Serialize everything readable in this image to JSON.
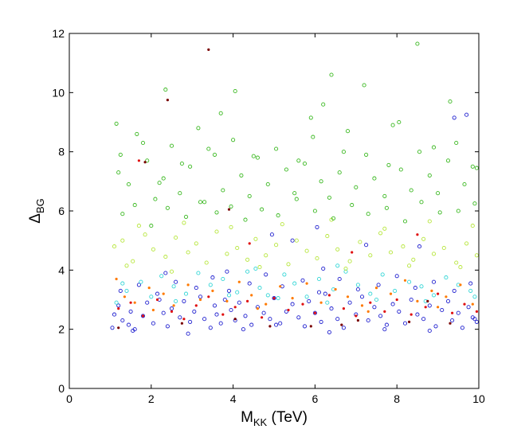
{
  "chart_data": {
    "type": "scatter",
    "title": "",
    "xlabel": {
      "main": "M",
      "sub": "KK",
      "rest": " (TeV)"
    },
    "ylabel": {
      "main": "Δ",
      "sub": "BG"
    },
    "xlim": [
      0,
      10
    ],
    "ylim": [
      0,
      12
    ],
    "xticks": [
      "0",
      "2",
      "4",
      "6",
      "8",
      "10"
    ],
    "yticks": [
      "0",
      "2",
      "4",
      "6",
      "8",
      "10",
      "12"
    ],
    "grid": false,
    "colors": {
      "blue": "#1f1fcf",
      "cyan": "#33d6d6",
      "yellow_green": "#b6e63a",
      "green": "#39b81f",
      "orange": "#ff7a00",
      "red": "#e01010",
      "dark_red": "#7a0000"
    },
    "series": [
      {
        "color_key": "blue",
        "marker": "open",
        "x": [
          1.05,
          1.1,
          1.2,
          1.3,
          1.45,
          1.5,
          1.6,
          1.8,
          1.9,
          2.05,
          2.2,
          2.3,
          2.4,
          2.5,
          2.7,
          2.8,
          2.95,
          3.05,
          3.2,
          3.3,
          3.45,
          3.55,
          3.6,
          3.7,
          3.8,
          3.95,
          4.05,
          4.15,
          4.3,
          4.45,
          4.6,
          4.75,
          4.9,
          5.0,
          5.15,
          5.3,
          5.45,
          5.6,
          5.75,
          5.85,
          6.0,
          6.15,
          6.25,
          6.4,
          6.55,
          6.7,
          6.85,
          7.0,
          7.15,
          7.3,
          7.45,
          7.6,
          7.75,
          7.9,
          8.05,
          8.2,
          8.35,
          8.5,
          8.65,
          8.8,
          8.95,
          9.1,
          9.25,
          9.35,
          9.5,
          9.6,
          9.75,
          9.85,
          9.95,
          1.25,
          1.7,
          2.15,
          2.6,
          3.1,
          3.5,
          3.9,
          4.4,
          4.8,
          5.2,
          5.7,
          6.1,
          6.6,
          7.05,
          7.55,
          8.0,
          8.45,
          8.9,
          9.4,
          9.8,
          4.95,
          5.45,
          6.05,
          6.2,
          7.25,
          2.35,
          3.85,
          9.7,
          9.4,
          8.55,
          1.55,
          2.9,
          4.25,
          5.05,
          6.35,
          7.7,
          8.8,
          9.9
        ],
        "y": [
          2.05,
          2.5,
          2.8,
          2.3,
          2.15,
          2.6,
          2.0,
          2.45,
          2.9,
          2.2,
          3.0,
          2.55,
          2.1,
          2.7,
          2.4,
          2.95,
          2.25,
          2.6,
          3.1,
          2.35,
          2.05,
          2.8,
          2.5,
          2.2,
          3.0,
          2.65,
          2.3,
          2.9,
          2.45,
          2.15,
          2.75,
          2.55,
          2.35,
          3.05,
          2.2,
          2.6,
          2.85,
          2.4,
          2.1,
          2.95,
          2.55,
          2.25,
          3.2,
          2.7,
          2.35,
          2.05,
          2.9,
          2.5,
          3.1,
          2.3,
          2.75,
          2.45,
          2.15,
          2.85,
          2.6,
          2.2,
          3.0,
          2.5,
          2.35,
          2.8,
          2.1,
          2.65,
          2.95,
          2.3,
          2.55,
          2.05,
          2.75,
          2.4,
          2.25,
          3.3,
          3.5,
          3.2,
          3.6,
          3.4,
          3.75,
          3.3,
          3.55,
          3.85,
          3.45,
          3.65,
          3.25,
          3.7,
          3.35,
          3.5,
          3.8,
          3.4,
          3.6,
          3.3,
          3.55,
          5.2,
          5.0,
          5.45,
          4.05,
          4.85,
          3.9,
          3.95,
          9.25,
          9.15,
          4.8,
          1.95,
          1.85,
          2.0,
          2.15,
          1.9,
          2.0,
          1.95,
          2.35
        ],
        "size": 2.1
      },
      {
        "color_key": "cyan",
        "marker": "open",
        "x": [
          1.15,
          1.4,
          1.75,
          2.0,
          2.25,
          2.55,
          2.85,
          3.15,
          3.45,
          3.75,
          4.1,
          4.35,
          4.65,
          4.85,
          5.25,
          5.5,
          5.8,
          6.1,
          6.45,
          6.75,
          7.05,
          7.35,
          7.65,
          7.95,
          8.3,
          8.6,
          8.9,
          9.2,
          9.5,
          9.8,
          1.3,
          2.6,
          3.9,
          5.1,
          6.3,
          7.5,
          8.7,
          9.9,
          4.55,
          6.55
        ],
        "y": [
          2.9,
          3.3,
          3.6,
          3.1,
          3.8,
          3.45,
          3.2,
          3.9,
          3.5,
          3.7,
          3.25,
          3.95,
          3.4,
          3.15,
          3.85,
          3.55,
          3.1,
          3.7,
          3.35,
          3.95,
          3.5,
          3.2,
          3.85,
          3.3,
          3.6,
          3.45,
          3.15,
          3.75,
          3.5,
          3.3,
          3.55,
          2.95,
          3.15,
          3.05,
          2.9,
          3.0,
          2.95,
          3.1,
          4.05,
          4.15
        ],
        "size": 2.1
      },
      {
        "color_key": "yellow_green",
        "marker": "open",
        "x": [
          1.1,
          1.3,
          1.55,
          1.85,
          2.05,
          2.35,
          2.6,
          2.9,
          3.1,
          3.35,
          3.6,
          3.85,
          4.1,
          4.35,
          4.55,
          4.8,
          5.05,
          5.35,
          5.55,
          5.8,
          6.05,
          6.3,
          6.55,
          6.85,
          7.1,
          7.35,
          7.6,
          7.85,
          8.15,
          8.4,
          8.65,
          8.9,
          9.15,
          9.45,
          9.7,
          9.95,
          1.7,
          2.8,
          3.95,
          5.2,
          6.4,
          7.7,
          8.8,
          9.85,
          1.4,
          4.65,
          6.75,
          8.3,
          9.55,
          2.5
        ],
        "y": [
          4.8,
          5.0,
          4.3,
          5.2,
          4.7,
          4.45,
          5.1,
          4.6,
          4.9,
          4.25,
          5.3,
          4.55,
          4.75,
          4.35,
          5.05,
          4.5,
          4.85,
          4.2,
          5.0,
          4.65,
          4.4,
          5.15,
          4.7,
          4.3,
          4.95,
          4.5,
          5.25,
          4.6,
          4.8,
          4.35,
          5.05,
          4.55,
          4.75,
          4.25,
          4.9,
          4.5,
          5.5,
          5.6,
          5.45,
          5.55,
          5.7,
          5.4,
          5.65,
          5.5,
          4.15,
          4.1,
          4.05,
          4.15,
          4.1,
          3.95
        ],
        "size": 2.1
      },
      {
        "color_key": "green",
        "marker": "open",
        "x": [
          1.15,
          1.2,
          1.45,
          1.65,
          1.9,
          2.1,
          2.3,
          2.5,
          2.7,
          2.95,
          3.15,
          3.3,
          3.55,
          3.75,
          4.0,
          4.2,
          4.4,
          4.6,
          4.85,
          5.05,
          5.3,
          5.5,
          5.75,
          5.95,
          6.15,
          6.35,
          6.6,
          6.8,
          7.0,
          7.25,
          7.45,
          7.7,
          7.9,
          8.1,
          8.35,
          8.55,
          8.8,
          9.0,
          9.25,
          9.45,
          9.65,
          9.85,
          1.3,
          1.6,
          2.0,
          2.4,
          2.85,
          3.2,
          3.6,
          3.95,
          4.3,
          4.7,
          5.1,
          5.55,
          6.0,
          6.45,
          6.9,
          7.3,
          7.75,
          8.2,
          8.6,
          9.05,
          9.5,
          9.9,
          2.35,
          4.05,
          6.2,
          7.2,
          8.5,
          3.7,
          5.9,
          9.3,
          1.25,
          1.8,
          2.75,
          3.4,
          4.5,
          5.6,
          6.7,
          7.8,
          8.9,
          9.95,
          2.2,
          6.4,
          8.05
        ],
        "y": [
          8.95,
          7.3,
          6.9,
          8.6,
          7.7,
          6.4,
          7.1,
          8.2,
          6.6,
          7.5,
          8.8,
          6.3,
          7.9,
          6.7,
          8.4,
          7.2,
          6.5,
          7.8,
          6.9,
          8.1,
          7.4,
          6.6,
          7.6,
          8.5,
          7.0,
          6.45,
          7.3,
          8.7,
          6.8,
          7.9,
          7.1,
          6.5,
          8.9,
          7.4,
          6.7,
          8.0,
          7.2,
          6.6,
          7.7,
          8.3,
          6.9,
          7.5,
          5.9,
          6.2,
          5.5,
          6.1,
          5.8,
          6.3,
          5.95,
          6.15,
          5.7,
          6.05,
          5.85,
          6.4,
          6.0,
          5.75,
          6.2,
          5.9,
          6.1,
          5.65,
          6.3,
          5.95,
          6.0,
          6.25,
          10.1,
          10.05,
          9.6,
          10.25,
          11.65,
          9.3,
          9.15,
          9.7,
          7.9,
          8.3,
          7.6,
          8.1,
          7.85,
          7.7,
          8.0,
          7.55,
          8.15,
          7.45,
          6.95,
          10.6,
          9.0
        ],
        "size": 2.1
      },
      {
        "color_key": "orange",
        "marker": "filled",
        "x": [
          1.15,
          1.35,
          1.6,
          1.95,
          2.3,
          2.55,
          2.9,
          3.2,
          3.5,
          3.85,
          4.15,
          4.45,
          4.8,
          5.15,
          5.45,
          5.8,
          6.15,
          6.5,
          6.8,
          7.15,
          7.5,
          7.85,
          8.2,
          8.5,
          8.85,
          9.2,
          9.55,
          9.85,
          2.05,
          4.6,
          7.3,
          9.0
        ],
        "y": [
          3.7,
          3.1,
          2.9,
          3.4,
          3.2,
          2.8,
          3.5,
          3.0,
          3.3,
          2.95,
          3.6,
          3.15,
          2.85,
          3.45,
          3.05,
          3.55,
          2.9,
          3.35,
          3.1,
          2.8,
          3.4,
          3.2,
          3.65,
          2.95,
          3.3,
          3.1,
          3.5,
          2.85,
          2.65,
          2.7,
          2.6,
          2.75
        ],
        "size": 1.6
      },
      {
        "color_key": "red",
        "marker": "filled",
        "x": [
          1.2,
          1.5,
          1.8,
          2.15,
          2.5,
          2.8,
          3.1,
          3.4,
          3.75,
          4.05,
          4.35,
          4.7,
          5.0,
          5.35,
          5.7,
          6.0,
          6.35,
          6.7,
          7.0,
          7.35,
          7.7,
          8.0,
          8.35,
          8.7,
          9.0,
          9.35,
          9.65,
          9.95,
          1.7,
          4.4,
          6.9,
          8.5
        ],
        "y": [
          2.7,
          2.9,
          2.45,
          3.0,
          2.6,
          2.35,
          2.8,
          3.1,
          2.5,
          2.75,
          2.95,
          2.4,
          3.05,
          2.65,
          2.85,
          2.55,
          3.15,
          2.7,
          2.45,
          2.9,
          2.6,
          3.0,
          2.5,
          2.75,
          3.2,
          2.55,
          2.85,
          2.6,
          7.7,
          4.9,
          4.6,
          5.2
        ],
        "size": 1.6
      },
      {
        "color_key": "dark_red",
        "marker": "filled",
        "x": [
          3.4,
          2.4,
          1.2,
          2.75,
          4.05,
          4.9,
          6.65,
          7.05,
          8.3,
          9.3,
          5.9,
          3.9,
          1.85,
          8.75
        ],
        "y": [
          11.45,
          9.75,
          2.05,
          2.2,
          2.35,
          2.1,
          2.15,
          2.3,
          2.25,
          2.2,
          2.1,
          6.05,
          7.65,
          2.95
        ],
        "size": 1.6
      }
    ]
  }
}
